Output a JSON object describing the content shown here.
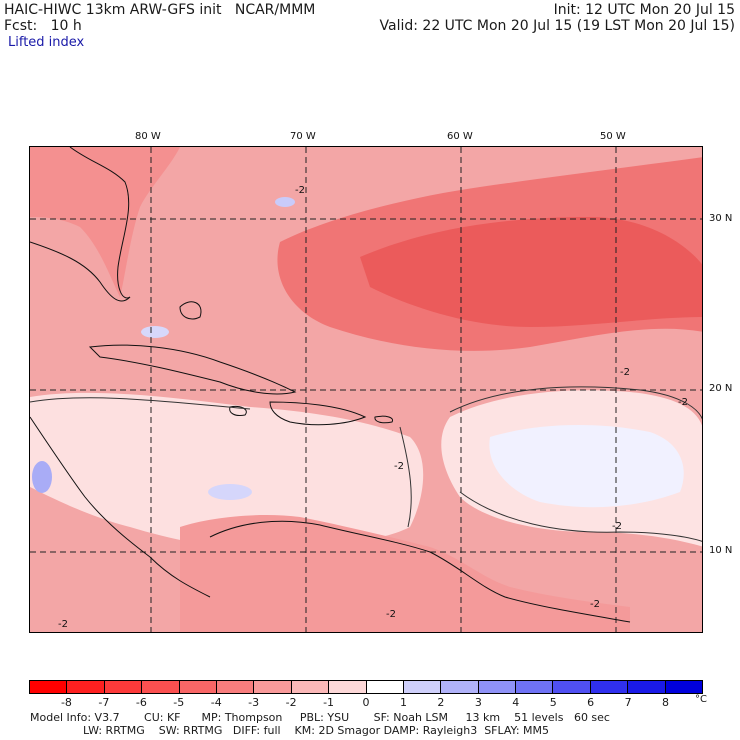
{
  "header": {
    "title_left": "HAIC-HIWC 13km ARW-GFS init   NCAR/MMM",
    "init": "Init: 12 UTC Mon 20 Jul 15",
    "fcst": "Fcst:   10 h",
    "valid": "Valid: 22 UTC Mon 20 Jul 15 (19 LST Mon 20 Jul 15)",
    "field": "Lifted index"
  },
  "map": {
    "longitude_labels": [
      "80 W",
      "70 W",
      "60 W",
      "50 W"
    ],
    "latitude_labels": [
      "30 N",
      "20 N",
      "10 N"
    ],
    "contour_labels": [
      "-2",
      "-2",
      "-2",
      "-2",
      "-2",
      "-2",
      "-2",
      "-2"
    ]
  },
  "colorbar": {
    "tick_labels": [
      "-8",
      "-7",
      "-6",
      "-5",
      "-4",
      "-3",
      "-2",
      "-1",
      "0",
      "1",
      "2",
      "3",
      "4",
      "5",
      "6",
      "7",
      "8"
    ],
    "unit": "°C",
    "colors": [
      "#ff0000",
      "#fe2020",
      "#fd3a3a",
      "#fb5050",
      "#f96666",
      "#f87d7d",
      "#f99a9a",
      "#fbb8b8",
      "#fdd8d8",
      "#ffffff",
      "#cfd0fb",
      "#b0b2f9",
      "#8f92f7",
      "#6f72f5",
      "#5050f2",
      "#3030ee",
      "#1a1ae8",
      "#0000dd"
    ]
  },
  "model_info": {
    "line1": "Model Info: V3.7       CU: KF      MP: Thompson     PBL: YSU       SF: Noah LSM     13 km    51 levels   60 sec",
    "line2": "LW: RRTMG    SW: RRTMG   DIFF: full    KM: 2D Smagor DAMP: Rayleigh3  SFLAY: MM5"
  }
}
